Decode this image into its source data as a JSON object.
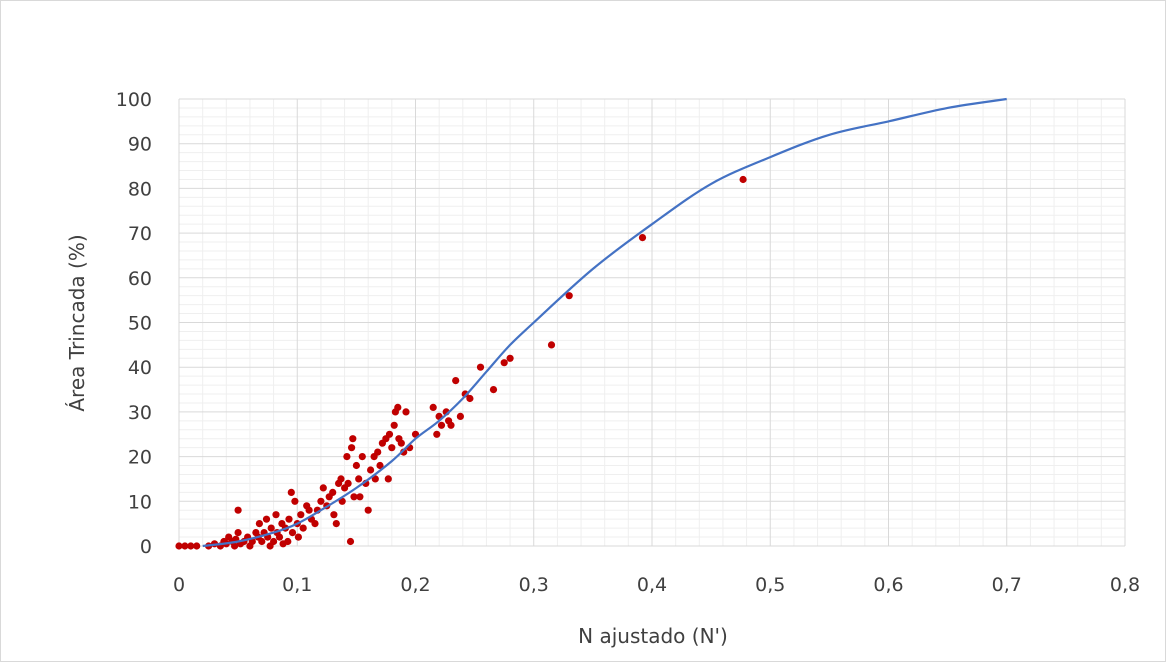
{
  "chart_data": {
    "type": "scatter",
    "xlabel": "N ajustado (N')",
    "ylabel": "Área Trincada (%)",
    "xlim": [
      0,
      0.8
    ],
    "ylim": [
      0,
      100
    ],
    "x_ticks": [
      "0",
      "0,1",
      "0,2",
      "0,3",
      "0,4",
      "0,5",
      "0,6",
      "0,7",
      "0,8"
    ],
    "y_ticks": [
      "0",
      "10",
      "20",
      "30",
      "40",
      "50",
      "60",
      "70",
      "80",
      "90",
      "100"
    ],
    "grid": true,
    "legend": "none",
    "colors": {
      "points": "#c00000",
      "curve": "#4472c4",
      "grid": "#d9d9d9"
    },
    "series": [
      {
        "type": "scatter",
        "points": [
          [
            0.0,
            0
          ],
          [
            0.005,
            0
          ],
          [
            0.01,
            0
          ],
          [
            0.015,
            0
          ],
          [
            0.025,
            0
          ],
          [
            0.03,
            0.5
          ],
          [
            0.035,
            0
          ],
          [
            0.038,
            1
          ],
          [
            0.04,
            0.5
          ],
          [
            0.042,
            2
          ],
          [
            0.045,
            1
          ],
          [
            0.047,
            0
          ],
          [
            0.048,
            1.5
          ],
          [
            0.05,
            8
          ],
          [
            0.05,
            3
          ],
          [
            0.052,
            0.5
          ],
          [
            0.055,
            1
          ],
          [
            0.058,
            2
          ],
          [
            0.06,
            0
          ],
          [
            0.062,
            1
          ],
          [
            0.065,
            3
          ],
          [
            0.067,
            2
          ],
          [
            0.068,
            5
          ],
          [
            0.07,
            1
          ],
          [
            0.072,
            3
          ],
          [
            0.074,
            6
          ],
          [
            0.075,
            2
          ],
          [
            0.077,
            0
          ],
          [
            0.078,
            4
          ],
          [
            0.08,
            1
          ],
          [
            0.082,
            7
          ],
          [
            0.083,
            3
          ],
          [
            0.085,
            2
          ],
          [
            0.087,
            5
          ],
          [
            0.088,
            0.5
          ],
          [
            0.09,
            4
          ],
          [
            0.092,
            1
          ],
          [
            0.093,
            6
          ],
          [
            0.095,
            12
          ],
          [
            0.096,
            3
          ],
          [
            0.098,
            10
          ],
          [
            0.1,
            5
          ],
          [
            0.101,
            2
          ],
          [
            0.103,
            7
          ],
          [
            0.105,
            4
          ],
          [
            0.108,
            9
          ],
          [
            0.11,
            8
          ],
          [
            0.112,
            6
          ],
          [
            0.115,
            5
          ],
          [
            0.117,
            8
          ],
          [
            0.12,
            10
          ],
          [
            0.122,
            13
          ],
          [
            0.125,
            9
          ],
          [
            0.127,
            11
          ],
          [
            0.13,
            12
          ],
          [
            0.131,
            7
          ],
          [
            0.133,
            5
          ],
          [
            0.135,
            14
          ],
          [
            0.137,
            15
          ],
          [
            0.138,
            10
          ],
          [
            0.14,
            13
          ],
          [
            0.142,
            20
          ],
          [
            0.143,
            14
          ],
          [
            0.145,
            1
          ],
          [
            0.146,
            22
          ],
          [
            0.147,
            24
          ],
          [
            0.148,
            11
          ],
          [
            0.15,
            18
          ],
          [
            0.152,
            15
          ],
          [
            0.153,
            11
          ],
          [
            0.155,
            20
          ],
          [
            0.158,
            14
          ],
          [
            0.16,
            8
          ],
          [
            0.162,
            17
          ],
          [
            0.165,
            20
          ],
          [
            0.166,
            15
          ],
          [
            0.168,
            21
          ],
          [
            0.17,
            18
          ],
          [
            0.172,
            23
          ],
          [
            0.175,
            24
          ],
          [
            0.177,
            15
          ],
          [
            0.178,
            25
          ],
          [
            0.18,
            22
          ],
          [
            0.182,
            27
          ],
          [
            0.183,
            30
          ],
          [
            0.185,
            31
          ],
          [
            0.186,
            24
          ],
          [
            0.188,
            23
          ],
          [
            0.19,
            21
          ],
          [
            0.192,
            30
          ],
          [
            0.195,
            22
          ],
          [
            0.2,
            25
          ],
          [
            0.215,
            31
          ],
          [
            0.218,
            25
          ],
          [
            0.22,
            29
          ],
          [
            0.222,
            27
          ],
          [
            0.226,
            30
          ],
          [
            0.228,
            28
          ],
          [
            0.23,
            27
          ],
          [
            0.234,
            37
          ],
          [
            0.238,
            29
          ],
          [
            0.242,
            34
          ],
          [
            0.246,
            33
          ],
          [
            0.255,
            40
          ],
          [
            0.266,
            35
          ],
          [
            0.275,
            41
          ],
          [
            0.28,
            42
          ],
          [
            0.315,
            45
          ],
          [
            0.33,
            56
          ],
          [
            0.392,
            69
          ],
          [
            0.477,
            82
          ]
        ]
      },
      {
        "type": "line",
        "points": [
          [
            0.02,
            0
          ],
          [
            0.05,
            1
          ],
          [
            0.08,
            3
          ],
          [
            0.1,
            5
          ],
          [
            0.12,
            8
          ],
          [
            0.15,
            13
          ],
          [
            0.18,
            19
          ],
          [
            0.2,
            24
          ],
          [
            0.22,
            28
          ],
          [
            0.24,
            33
          ],
          [
            0.26,
            39
          ],
          [
            0.28,
            45
          ],
          [
            0.3,
            50
          ],
          [
            0.35,
            62
          ],
          [
            0.4,
            72
          ],
          [
            0.45,
            81
          ],
          [
            0.5,
            87
          ],
          [
            0.55,
            92
          ],
          [
            0.6,
            95
          ],
          [
            0.65,
            98
          ],
          [
            0.7,
            100
          ]
        ]
      }
    ]
  }
}
